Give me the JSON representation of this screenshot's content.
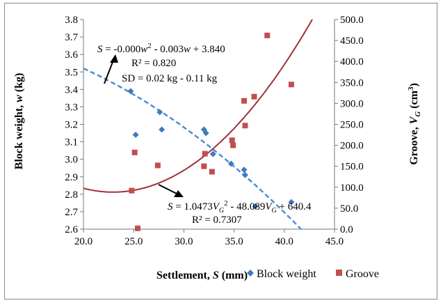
{
  "chart_data": {
    "type": "scatter",
    "xlabel": "Settlement, S (mm)",
    "ylabel_left": "Block weight, w (kg)",
    "ylabel_right": "Groove, VG (cm3)",
    "xlim": [
      20.0,
      45.0
    ],
    "ylim_left": [
      2.6,
      3.8
    ],
    "ylim_right": [
      0.0,
      500.0
    ],
    "x_ticks": [
      "20.0",
      "25.0",
      "30.0",
      "35.0",
      "40.0",
      "45.0"
    ],
    "y_left_ticks": [
      "2.6",
      "2.7",
      "2.8",
      "2.9",
      "3.0",
      "3.1",
      "3.2",
      "3.3",
      "3.4",
      "3.5",
      "3.6",
      "3.7",
      "3.8"
    ],
    "y_right_ticks": [
      "0.0",
      "50.0",
      "100.0",
      "150.0",
      "200.0",
      "250.0",
      "300.0",
      "350.0",
      "400.0",
      "450.0",
      "500.0"
    ],
    "grid": false,
    "legend": "bottom",
    "series": [
      {
        "name": "Block weight",
        "axis": "left",
        "marker": "diamond",
        "color": "#3F7CBF",
        "points": [
          [
            24.7,
            3.39
          ],
          [
            25.2,
            3.14
          ],
          [
            27.6,
            3.27
          ],
          [
            27.8,
            3.17
          ],
          [
            32.0,
            3.17
          ],
          [
            32.2,
            3.15
          ],
          [
            32.9,
            3.03
          ],
          [
            34.7,
            2.975
          ],
          [
            36.0,
            2.94
          ],
          [
            36.1,
            2.91
          ],
          [
            37.1,
            2.73
          ],
          [
            40.7,
            2.755
          ]
        ]
      },
      {
        "name": "Groove",
        "axis": "right",
        "marker": "square",
        "color": "#C0504D",
        "points": [
          [
            25.1,
            183
          ],
          [
            25.4,
            2
          ],
          [
            27.4,
            152
          ],
          [
            24.8,
            92
          ],
          [
            32.0,
            150
          ],
          [
            32.1,
            180
          ],
          [
            32.8,
            137
          ],
          [
            34.8,
            212
          ],
          [
            34.9,
            200
          ],
          [
            36.0,
            306
          ],
          [
            36.1,
            247
          ],
          [
            37.0,
            316
          ],
          [
            38.3,
            462
          ],
          [
            40.7,
            345
          ]
        ]
      }
    ],
    "fits": [
      {
        "series": "Block weight",
        "equation": "S = -0.000w2 - 0.003w + 3.840",
        "r2": "R² = 0.820",
        "note": "SD = 0.02 kg - 0.11 kg",
        "style": "dashed",
        "color": "#4A8FD6"
      },
      {
        "series": "Groove",
        "equation": "S = 1.0473VG2 - 48.089VG + 640.4",
        "r2": "R² = 0.7307",
        "style": "solid",
        "color": "#A0303A"
      }
    ],
    "annotations": {
      "fit1_S": "S",
      "fit1_mid": " = -0.000",
      "fit1_w1": "w",
      "fit1_exp": "2",
      "fit1_mid2": " - 0.003",
      "fit1_w2": "w",
      "fit1_end": " + 3.840",
      "fit1_r2": "R² = 0.820",
      "fit1_sd": "SD = 0.02 kg - 0.11 kg",
      "fit2_S": "S",
      "fit2_mid": " = 1.0473",
      "fit2_v1": "V",
      "fit2_sub1": "G",
      "fit2_exp": "2",
      "fit2_mid2": " - 48.089",
      "fit2_v2": "V",
      "fit2_sub2": "G",
      "fit2_end": " + 640.4",
      "fit2_r2": "R² = 0.7307"
    },
    "axis_title_parts": {
      "x_pre": "Settlement, ",
      "x_var": "S",
      "x_post": " (mm)",
      "yl_pre": "Block weight, ",
      "yl_var": "w",
      "yl_post": " (kg)",
      "yr_pre": "Groove, ",
      "yr_var": "V",
      "yr_sub": "G",
      "yr_mid": " (cm",
      "yr_sup": "3",
      "yr_post": ")"
    }
  }
}
